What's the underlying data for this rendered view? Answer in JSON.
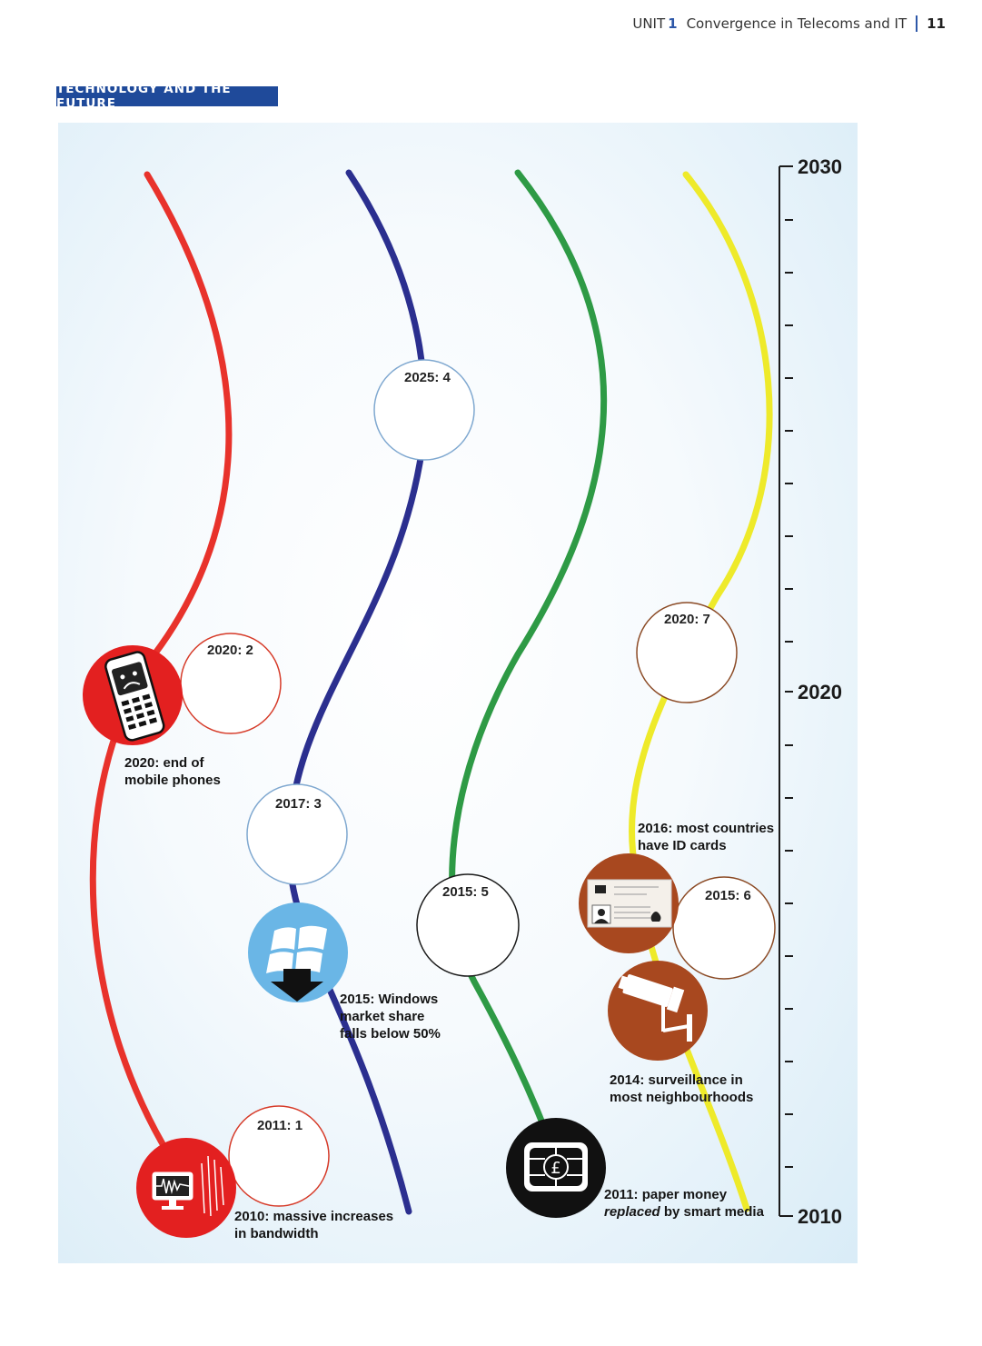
{
  "header": {
    "unit_label": "UNIT",
    "unit_number": "1",
    "title": "Convergence in Telecoms and IT",
    "page": "11"
  },
  "section_tag": "TECHNOLOGY AND THE FUTURE",
  "scale": {
    "top_label": "2030",
    "mid_label": "2020",
    "bottom_label": "2010"
  },
  "colors": {
    "red_line": "#e8322b",
    "blue_line": "#2b2f8f",
    "green_line": "#2e9a45",
    "yellow_line": "#eeea2a",
    "red_circle": "#e32020",
    "brown_circle": "#a8481f",
    "windows_circle": "#6ab6e6"
  },
  "gaps": [
    {
      "id": "1",
      "label": "2011: 1"
    },
    {
      "id": "2",
      "label": "2020: 2"
    },
    {
      "id": "3",
      "label": "2017: 3"
    },
    {
      "id": "4",
      "label": "2025: 4"
    },
    {
      "id": "5",
      "label": "2015: 5"
    },
    {
      "id": "6",
      "label": "2015: 6"
    },
    {
      "id": "7",
      "label": "2020: 7"
    }
  ],
  "captions": {
    "mobile_line1": "2020: end of",
    "mobile_line2": "mobile phones",
    "windows_line1": "2015: Windows",
    "windows_line2": "market share",
    "windows_line3": "falls below 50%",
    "bandwidth_line1": "2010: massive increases",
    "bandwidth_line2": "in bandwidth",
    "id_line1": "2016: most countries",
    "id_line2": "have ID cards",
    "surveillance_line1": "2014: surveillance in",
    "surveillance_line2": "most neighbourhoods",
    "money_line1": "2011: paper money",
    "money_line2_italic": "replaced",
    "money_line2_rest": " by smart media"
  },
  "icons": {
    "mobile": "broken-mobile-phone-icon",
    "bandwidth": "monitor-waveform-icon",
    "windows": "windows-logo-down-arrow-icon",
    "money": "chip-card-pound-icon",
    "id_card": "id-card-icon",
    "surveillance": "cctv-camera-icon"
  }
}
